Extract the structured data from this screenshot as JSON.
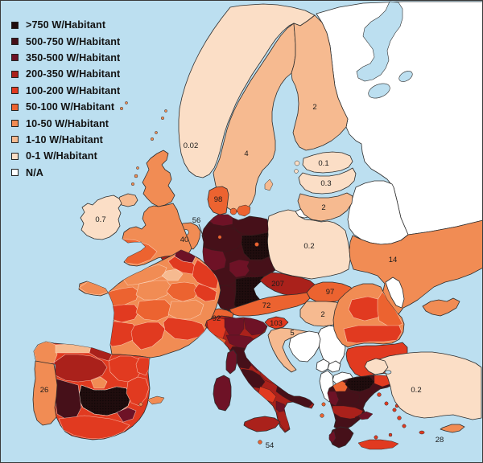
{
  "title": "Europe choropleth map of installed capacity per inhabitant (W/Habitant)",
  "legend": {
    "items": [
      {
        "key": "gt750",
        "label": ">750 W/Habitant",
        "color": "#200d0e"
      },
      {
        "key": "500-750",
        "label": "500-750 W/Habitant",
        "color": "#461019"
      },
      {
        "key": "350-500",
        "label": "350-500 W/Habitant",
        "color": "#6e1226"
      },
      {
        "key": "200-350",
        "label": "200-350 W/Habitant",
        "color": "#aa211b"
      },
      {
        "key": "100-200",
        "label": "100-200 W/Habitant",
        "color": "#e13a20"
      },
      {
        "key": "50-100",
        "label": "50-100 W/Habitant",
        "color": "#ec6330"
      },
      {
        "key": "10-50",
        "label": "10-50 W/Habitant",
        "color": "#f18c54"
      },
      {
        "key": "1-10",
        "label": "1-10 W/Habitant",
        "color": "#f6ba90"
      },
      {
        "key": "0-1",
        "label": "0-1 W/Habitant",
        "color": "#fbdec6"
      },
      {
        "key": "na",
        "label": "N/A",
        "color": "#ffffff"
      }
    ]
  },
  "map": {
    "sea_color": "#bcdff0",
    "border_color": "#2e2e2e",
    "labels": [
      {
        "region": "norway",
        "text": "0.02"
      },
      {
        "region": "sweden",
        "text": "4"
      },
      {
        "region": "finland",
        "text": "2"
      },
      {
        "region": "estonia",
        "text": "0.1"
      },
      {
        "region": "latvia",
        "text": "0.3"
      },
      {
        "region": "lithuania",
        "text": "2"
      },
      {
        "region": "poland",
        "text": "0.2"
      },
      {
        "region": "ukraine",
        "text": "14"
      },
      {
        "region": "ireland",
        "text": "0.7"
      },
      {
        "region": "netherlands",
        "text": "40"
      },
      {
        "region": "bremen-area",
        "text": "56"
      },
      {
        "region": "denmark",
        "text": "98"
      },
      {
        "region": "czech",
        "text": "207"
      },
      {
        "region": "slovakia",
        "text": "97"
      },
      {
        "region": "austria",
        "text": "72"
      },
      {
        "region": "hungary",
        "text": "2"
      },
      {
        "region": "switzerland",
        "text": "92"
      },
      {
        "region": "slovenia",
        "text": "103"
      },
      {
        "region": "croatia",
        "text": "5"
      },
      {
        "region": "portugal",
        "text": "26"
      },
      {
        "region": "turkey",
        "text": "0.2"
      },
      {
        "region": "cyprus",
        "text": "28"
      },
      {
        "region": "malta",
        "text": "54"
      }
    ],
    "regions": {
      "russia": "na",
      "belarus": "na",
      "kaliningrad": "na",
      "moldova": "na",
      "serbia": "na",
      "bosnia": "na",
      "montenegro": "na",
      "kosovo": "na",
      "macedonia": "na",
      "albania": "na",
      "norway": "0-1",
      "sweden": "1-10",
      "gotland": "1-10",
      "finland": "1-10",
      "estonia": "0-1",
      "estonia-islands": "0-1",
      "latvia": "0-1",
      "lithuania": "1-10",
      "poland": "0-1",
      "ukraine": "10-50",
      "crimea": "10-50",
      "romania": "10-50",
      "romania-center": "100-200",
      "romania-south": "100-200",
      "romania-east": "50-100",
      "bulgaria": "100-200",
      "bulgaria-se": "200-350",
      "greece-mainland": "500-750",
      "greece-wmac": "50-100",
      "greece-cmac": "gt750",
      "greece-thrace": "100-200",
      "greece-epirus": "350-500",
      "greece-thessaly": "500-750",
      "greece-sterea": "200-350",
      "greece-attica": "500-750",
      "peloponnese": "500-750",
      "pelop-west": "350-500",
      "euboea": "350-500",
      "crete": "100-200",
      "aegean-islands": "100-200",
      "ionian-islands": "50-100",
      "turkey": "0-1",
      "turkey-europe": "0-1",
      "cyprus": "10-50",
      "uk-scotland": "10-50",
      "uk-islands": "10-50",
      "uk-england": "10-50",
      "uk-southwest": "50-100",
      "n-ireland": "1-10",
      "ireland": "0-1",
      "netherlands": "10-50",
      "belgium-flanders": "200-350",
      "belgium-wallonia": "100-200",
      "luxembourg": "100-200",
      "germany": "500-750",
      "de-sh": "350-500",
      "de-meck": "500-750",
      "de-nieder": "500-750",
      "de-brandenburg": "gt750",
      "de-nrw": "350-500",
      "de-hessen": "500-750",
      "de-thueringen": "350-500",
      "de-sachsen": "500-750",
      "de-rlp": "350-500",
      "de-bw": "500-750",
      "de-bayern": "gt750",
      "berlin-dot": "50-100",
      "bremen-dot": "50-100",
      "denmark": "50-100",
      "denmark-isles": "50-100",
      "czech": "200-350",
      "slovakia": "50-100",
      "austria": "50-100",
      "hungary": "1-10",
      "switzerland": "50-100",
      "slovenia": "100-200",
      "croatia": "1-10",
      "italy": "200-350",
      "it-piedmont": "100-200",
      "it-lombardy": "350-500",
      "it-veneto": "350-500",
      "it-liguria": "50-100",
      "it-emilia": "350-500",
      "it-tuscany": "500-750",
      "it-marche": "200-350",
      "it-umbria": "350-500",
      "it-lazio": "500-750",
      "it-abruzzo": "200-350",
      "it-campania": "100-200",
      "it-puglia": "500-750",
      "it-basilicata": "350-500",
      "it-calabria": "200-350",
      "sicily": "200-350",
      "sardinia": "350-500",
      "corsica": "350-500",
      "malta": "50-100",
      "france": "10-50",
      "fr-nord": "350-500",
      "fr-picardie": "100-200",
      "fr-normandy": "10-50",
      "fr-brittany": "10-50",
      "fr-idf": "1-10",
      "fr-grandest": "100-200",
      "fr-loire": "50-100",
      "fr-centre": "10-50",
      "fr-bourgogne": "50-100",
      "fr-franche": "100-200",
      "fr-poitou": "100-200",
      "fr-auvergne": "50-100",
      "fr-rhone": "10-50",
      "fr-aquitaine": "100-200",
      "fr-occitanie": "100-200",
      "fr-paca": "100-200",
      "spain": "100-200",
      "es-galicia": "10-50",
      "es-asturias": "1-10",
      "es-basque": "200-350",
      "es-castleon": "200-350",
      "es-aragon": "100-200",
      "es-catalonia": "100-200",
      "es-madrid": "10-50",
      "es-clm": "gt750",
      "es-extremadura": "500-750",
      "es-valencia": "100-200",
      "es-murcia": "350-500",
      "es-andalusia": "100-200",
      "balearics": "10-50",
      "portugal": "10-50"
    }
  }
}
